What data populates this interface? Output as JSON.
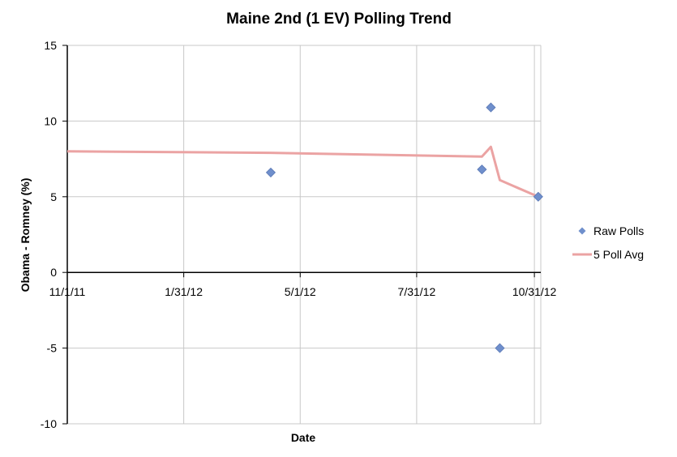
{
  "chart_data": {
    "type": "scatter",
    "title": "Maine 2nd (1 EV) Polling Trend",
    "xlabel": "Date",
    "ylabel": "Obama - Romney (%)",
    "xlim": [
      "2011-11-01",
      "2012-11-05"
    ],
    "ylim": [
      -10,
      15
    ],
    "x_ticks": [
      {
        "date": "2011-11-01",
        "label": "11/1/11"
      },
      {
        "date": "2012-01-31",
        "label": "1/31/12"
      },
      {
        "date": "2012-05-01",
        "label": "5/1/12"
      },
      {
        "date": "2012-07-31",
        "label": "7/31/12"
      },
      {
        "date": "2012-10-31",
        "label": "10/31/12"
      }
    ],
    "y_ticks": [
      15,
      10,
      5,
      0,
      -5,
      -10
    ],
    "grid": true,
    "legend_position": "right",
    "series": [
      {
        "name": "Raw Polls",
        "kind": "scatter",
        "marker": "diamond",
        "color": "#6f8fcc",
        "points": [
          {
            "x": "2012-04-08",
            "y": 6.6
          },
          {
            "x": "2012-09-20",
            "y": 6.8
          },
          {
            "x": "2012-09-27",
            "y": 10.9
          },
          {
            "x": "2012-10-04",
            "y": -5.0
          },
          {
            "x": "2012-11-03",
            "y": 5.0
          }
        ]
      },
      {
        "name": "5 Poll Avg",
        "kind": "line",
        "color": "#eba3a3",
        "points": [
          {
            "x": "2011-11-01",
            "y": 8.0
          },
          {
            "x": "2012-04-08",
            "y": 7.9
          },
          {
            "x": "2012-09-20",
            "y": 7.65
          },
          {
            "x": "2012-09-27",
            "y": 8.3
          },
          {
            "x": "2012-10-04",
            "y": 6.1
          },
          {
            "x": "2012-11-03",
            "y": 5.0
          }
        ]
      }
    ]
  }
}
